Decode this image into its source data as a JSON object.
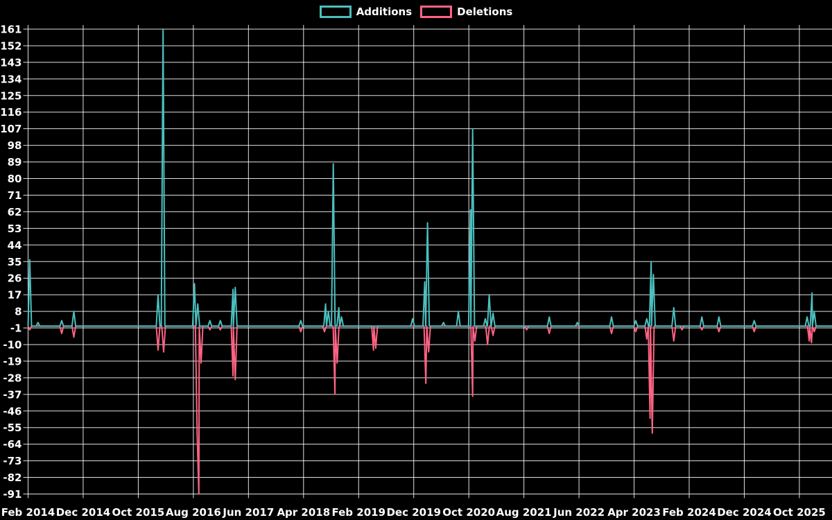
{
  "legend": {
    "items": [
      {
        "label": "Additions",
        "color": "#4bc0c0"
      },
      {
        "label": "Deletions",
        "color": "#ff6384"
      }
    ]
  },
  "colors": {
    "background": "#000000",
    "grid": "#ffffff",
    "text": "#ffffff",
    "additions": "#4bc0c0",
    "deletions": "#ff6384"
  },
  "chart_data": {
    "type": "line",
    "title": "",
    "xlabel": "",
    "ylabel": "",
    "grid": true,
    "legend_position": "top-center",
    "x_axis": {
      "labels": [
        "Feb 2014",
        "Dec 2014",
        "Oct 2015",
        "Aug 2016",
        "Jun 2017",
        "Apr 2018",
        "Feb 2019",
        "Dec 2019",
        "Oct 2020",
        "Aug 2021",
        "Jun 2022",
        "Apr 2023",
        "Feb 2024",
        "Dec 2024",
        "Oct 2025"
      ],
      "label_interval_months": 10
    },
    "y_axis": {
      "ticks": [
        161,
        152,
        143,
        134,
        125,
        116,
        107,
        98,
        89,
        80,
        71,
        62,
        53,
        44,
        35,
        26,
        17,
        8,
        -1,
        -10,
        -19,
        -28,
        -37,
        -46,
        -55,
        -64,
        -73,
        -82,
        -91
      ],
      "min": -91,
      "max": 161,
      "step": 9
    },
    "baseline_value": 0,
    "series": [
      {
        "name": "Additions",
        "color": "#4bc0c0",
        "baseline": 0,
        "spikes": [
          {
            "m": 0.3,
            "v": 36
          },
          {
            "m": 1.8,
            "v": 2
          },
          {
            "m": 6.1,
            "v": 3
          },
          {
            "m": 8.3,
            "v": 8
          },
          {
            "m": 23.6,
            "v": 17
          },
          {
            "m": 24.5,
            "v": 161
          },
          {
            "m": 30.2,
            "v": 23
          },
          {
            "m": 30.8,
            "v": 12
          },
          {
            "m": 33.0,
            "v": 3
          },
          {
            "m": 34.9,
            "v": 3
          },
          {
            "m": 37.2,
            "v": 20
          },
          {
            "m": 37.6,
            "v": 21
          },
          {
            "m": 49.5,
            "v": 3
          },
          {
            "m": 54.0,
            "v": 12
          },
          {
            "m": 54.5,
            "v": 8
          },
          {
            "m": 55.4,
            "v": 88
          },
          {
            "m": 56.4,
            "v": 10
          },
          {
            "m": 56.9,
            "v": 5
          },
          {
            "m": 69.8,
            "v": 4
          },
          {
            "m": 72.0,
            "v": 24
          },
          {
            "m": 72.5,
            "v": 56
          },
          {
            "m": 75.4,
            "v": 2
          },
          {
            "m": 78.1,
            "v": 8
          },
          {
            "m": 80.3,
            "v": 63
          },
          {
            "m": 80.7,
            "v": 107
          },
          {
            "m": 83.0,
            "v": 4
          },
          {
            "m": 83.7,
            "v": 17
          },
          {
            "m": 84.4,
            "v": 7
          },
          {
            "m": 94.6,
            "v": 5
          },
          {
            "m": 99.7,
            "v": 2
          },
          {
            "m": 105.9,
            "v": 5
          },
          {
            "m": 110.3,
            "v": 3
          },
          {
            "m": 112.3,
            "v": 4
          },
          {
            "m": 113.1,
            "v": 35
          },
          {
            "m": 113.5,
            "v": 28
          },
          {
            "m": 117.2,
            "v": 10
          },
          {
            "m": 122.3,
            "v": 5
          },
          {
            "m": 125.4,
            "v": 5
          },
          {
            "m": 131.8,
            "v": 3
          },
          {
            "m": 141.4,
            "v": 5
          },
          {
            "m": 142.3,
            "v": 18
          },
          {
            "m": 142.7,
            "v": 8
          }
        ]
      },
      {
        "name": "Deletions",
        "color": "#ff6384",
        "baseline": 0,
        "spikes": [
          {
            "m": 0.3,
            "v": -2
          },
          {
            "m": 6.1,
            "v": -4
          },
          {
            "m": 8.3,
            "v": -6
          },
          {
            "m": 23.6,
            "v": -13
          },
          {
            "m": 24.6,
            "v": -14
          },
          {
            "m": 30.7,
            "v": -59
          },
          {
            "m": 31.0,
            "v": -91
          },
          {
            "m": 31.4,
            "v": -20
          },
          {
            "m": 33.0,
            "v": -2
          },
          {
            "m": 34.9,
            "v": -2
          },
          {
            "m": 37.2,
            "v": -27
          },
          {
            "m": 37.6,
            "v": -29
          },
          {
            "m": 49.5,
            "v": -3
          },
          {
            "m": 53.8,
            "v": -3
          },
          {
            "m": 55.7,
            "v": -37
          },
          {
            "m": 56.1,
            "v": -20
          },
          {
            "m": 62.7,
            "v": -13
          },
          {
            "m": 63.1,
            "v": -12
          },
          {
            "m": 72.2,
            "v": -31
          },
          {
            "m": 72.7,
            "v": -14
          },
          {
            "m": 80.7,
            "v": -38
          },
          {
            "m": 81.1,
            "v": -8
          },
          {
            "m": 83.4,
            "v": -10
          },
          {
            "m": 84.4,
            "v": -5
          },
          {
            "m": 90.5,
            "v": -2
          },
          {
            "m": 94.6,
            "v": -4
          },
          {
            "m": 105.9,
            "v": -4
          },
          {
            "m": 110.3,
            "v": -3
          },
          {
            "m": 112.3,
            "v": -7
          },
          {
            "m": 112.9,
            "v": -50
          },
          {
            "m": 113.3,
            "v": -58
          },
          {
            "m": 117.2,
            "v": -8
          },
          {
            "m": 118.7,
            "v": -2
          },
          {
            "m": 122.3,
            "v": -2
          },
          {
            "m": 125.4,
            "v": -3
          },
          {
            "m": 131.8,
            "v": -3
          },
          {
            "m": 141.8,
            "v": -8
          },
          {
            "m": 142.2,
            "v": -9
          },
          {
            "m": 142.7,
            "v": -3
          }
        ]
      }
    ]
  }
}
